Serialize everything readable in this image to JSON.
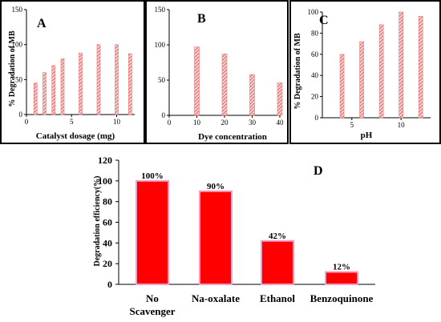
{
  "chart_data": [
    {
      "type": "bar",
      "panel_label": "A",
      "xlabel": "Catalyst dosage (mg)",
      "ylabel": "% Degradation of MB",
      "xlim": [
        0,
        12
      ],
      "ylim": [
        0,
        150
      ],
      "xticks": [
        0,
        5,
        10
      ],
      "yticks": [
        0,
        50,
        100,
        150
      ],
      "x": [
        1,
        2,
        3,
        4,
        6,
        8,
        10,
        11.5
      ],
      "values": [
        45,
        60,
        70,
        80,
        88,
        100,
        100,
        87
      ],
      "bar_style": "hatched",
      "color": "#e87878"
    },
    {
      "type": "bar",
      "panel_label": "B",
      "xlabel": "Dye concentration",
      "ylabel": "",
      "xlim": [
        0,
        40
      ],
      "ylim": [
        0,
        150
      ],
      "xticks": [
        0,
        10,
        20,
        30,
        40
      ],
      "yticks": [
        0,
        50,
        100,
        150
      ],
      "x": [
        10,
        20,
        30,
        40
      ],
      "values": [
        97,
        87,
        58,
        46
      ],
      "bar_style": "hatched",
      "color": "#e87878"
    },
    {
      "type": "bar",
      "panel_label": "C",
      "xlabel": "pH",
      "ylabel": "% Degradation of MB",
      "xlim": [
        2,
        13
      ],
      "ylim": [
        0,
        100
      ],
      "xticks": [
        5,
        10
      ],
      "yticks": [
        0,
        20,
        40,
        60,
        80,
        100
      ],
      "x": [
        4,
        6,
        8,
        10,
        12
      ],
      "values": [
        60,
        72,
        88,
        100,
        96
      ],
      "bar_style": "hatched",
      "color": "#e87878"
    },
    {
      "type": "bar",
      "panel_label": "D",
      "xlabel": "",
      "ylabel": "Degradation efficiency(%)",
      "ylim": [
        0,
        120
      ],
      "yticks": [
        0,
        20,
        40,
        60,
        80,
        100,
        120
      ],
      "categories": [
        [
          "No",
          "Scavenger"
        ],
        [
          "Na-oxalate"
        ],
        [
          "Ethanol"
        ],
        [
          "Benzoquinone"
        ]
      ],
      "values": [
        100,
        90,
        42,
        12
      ],
      "data_labels": [
        "100%",
        "90%",
        "42%",
        "12%"
      ],
      "color": "#ff0000",
      "edge_color": "#f0a0c8"
    }
  ]
}
